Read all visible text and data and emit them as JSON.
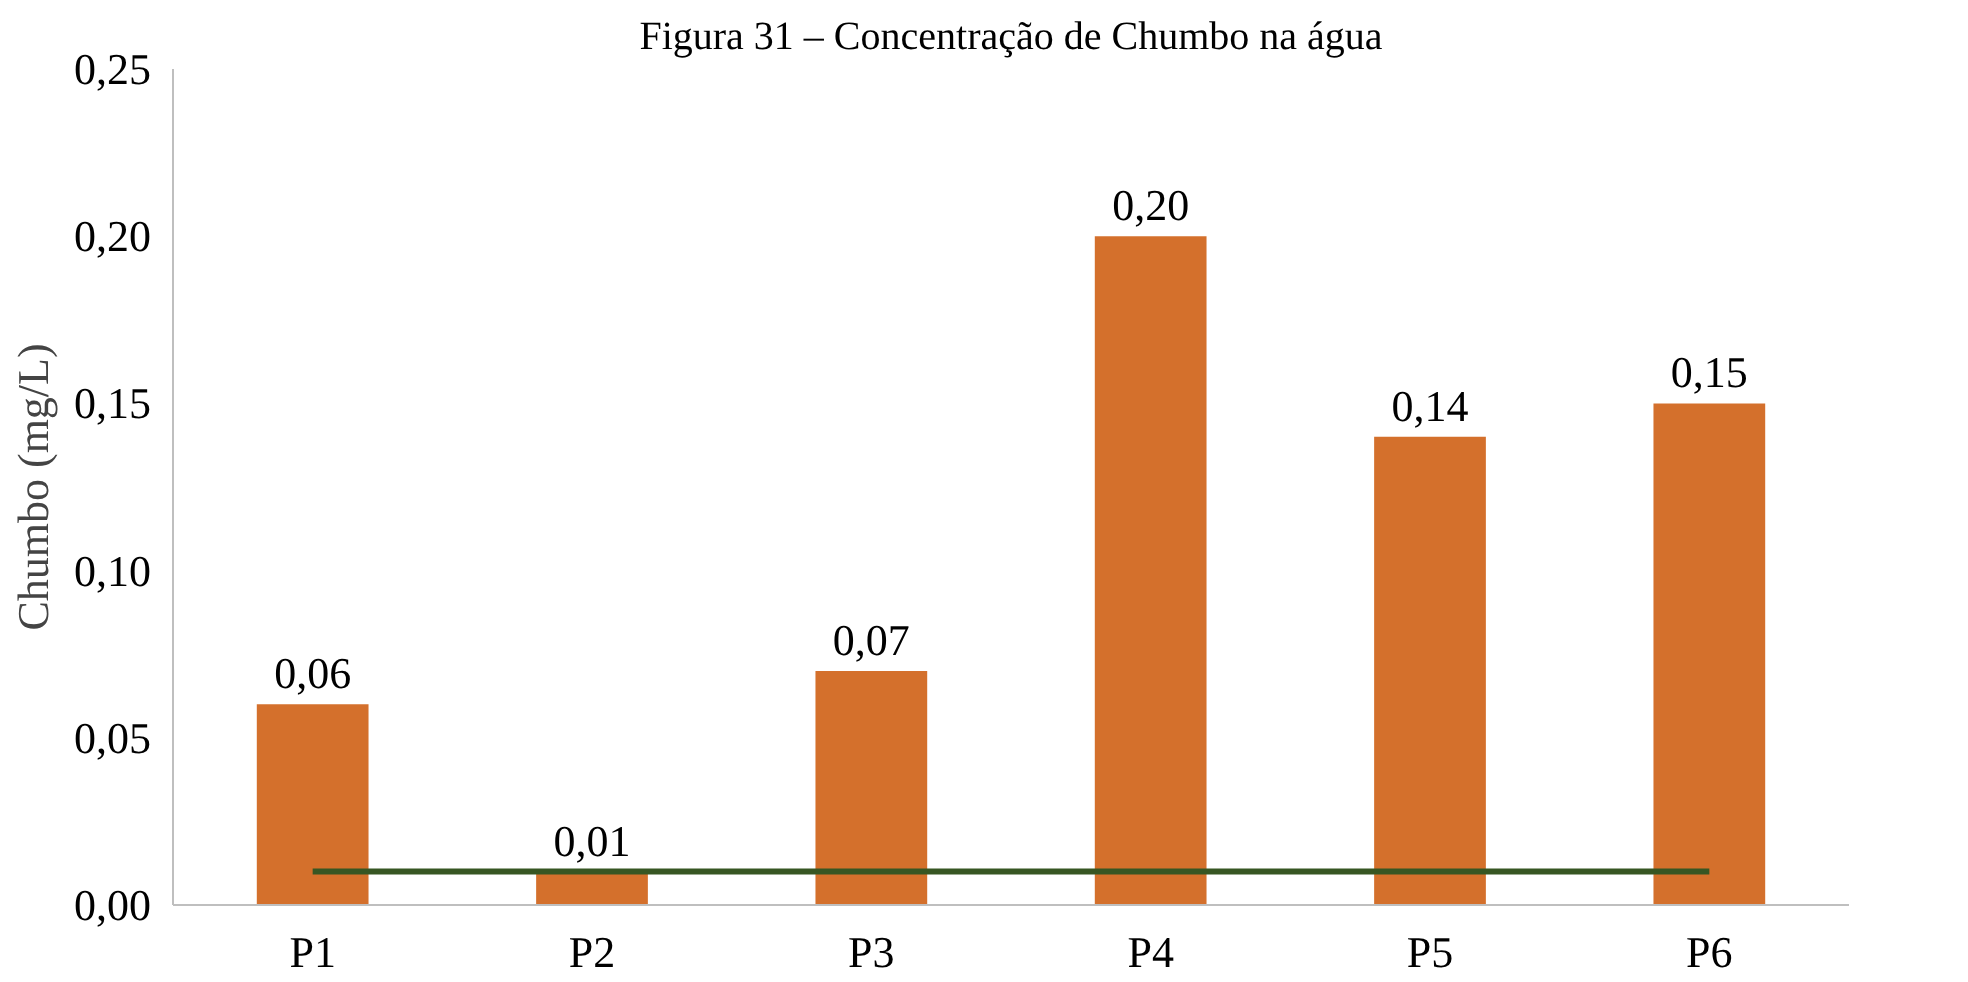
{
  "chart_data": {
    "type": "bar",
    "title": "Figura 31 – Concentração de Chumbo na água",
    "ylabel": "Chumbo (mg/L)",
    "categories": [
      "P1",
      "P2",
      "P3",
      "P4",
      "P5",
      "P6"
    ],
    "series": [
      {
        "color": "#d4702c",
        "values": [
          0.06,
          0.01,
          0.07,
          0.2,
          0.14,
          0.15
        ],
        "value_labels": [
          "0,06",
          "0,01",
          "0,07",
          "0,20",
          "0,14",
          "0,15"
        ]
      },
      {
        "type": "line",
        "color": "#375623",
        "values": [
          0.01,
          0.01,
          0.01,
          0.01,
          0.01,
          0.01
        ]
      }
    ],
    "ylim": [
      0,
      0.25
    ],
    "yticks": [
      {
        "value": 0,
        "label": "0,00"
      },
      {
        "value": 0.05,
        "label": "0,05"
      },
      {
        "value": 0.1,
        "label": "0,10"
      },
      {
        "value": 0.15,
        "label": "0,15"
      },
      {
        "value": 0.2,
        "label": "0,20"
      },
      {
        "value": 0.25,
        "label": "0,25"
      }
    ],
    "grid": false,
    "marker": "none",
    "line_style": "solid"
  }
}
